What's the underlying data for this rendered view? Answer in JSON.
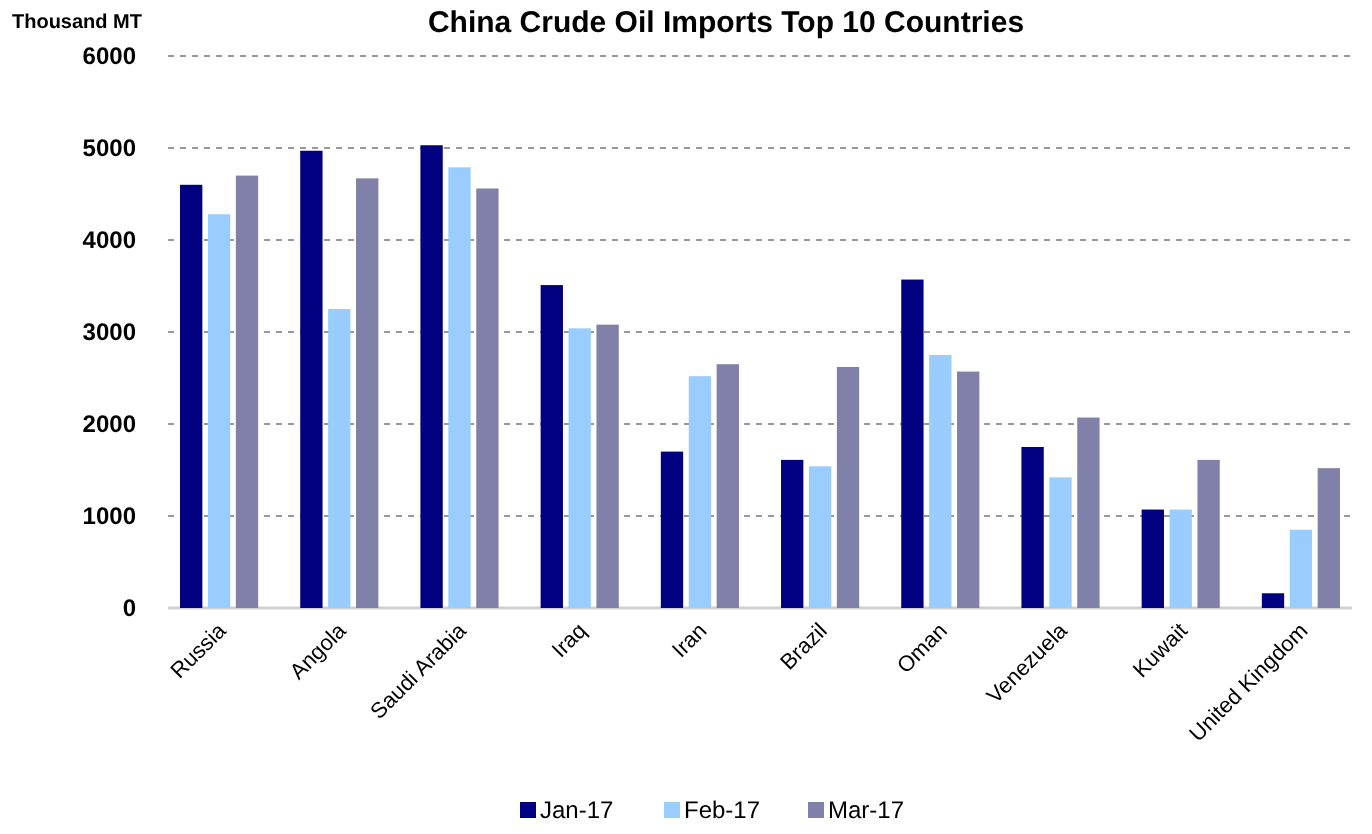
{
  "chart_data": {
    "type": "bar",
    "title": "China Crude Oil Imports Top 10 Countries",
    "ylabel": "Thousand MT",
    "categories": [
      "Russia",
      "Angola",
      "Saudi Arabia",
      "Iraq",
      "Iran",
      "Brazil",
      "Oman",
      "Venezuela",
      "Kuwait",
      "United Kingdom"
    ],
    "series": [
      {
        "name": "Jan-17",
        "color": "#000080",
        "values": [
          4600,
          4970,
          5030,
          3510,
          1700,
          1610,
          3570,
          1750,
          1070,
          160
        ]
      },
      {
        "name": "Feb-17",
        "color": "#99ccff",
        "values": [
          4280,
          3250,
          4790,
          3040,
          2520,
          1540,
          2750,
          1420,
          1070,
          850
        ]
      },
      {
        "name": "Mar-17",
        "color": "#8080a8",
        "values": [
          4700,
          4670,
          4560,
          3080,
          2650,
          2620,
          2570,
          2070,
          1610,
          1520
        ]
      }
    ],
    "ylim": [
      0,
      6000
    ],
    "yticks": [
      0,
      1000,
      2000,
      3000,
      4000,
      5000,
      6000
    ],
    "grid": "y",
    "legend": "bottom"
  }
}
